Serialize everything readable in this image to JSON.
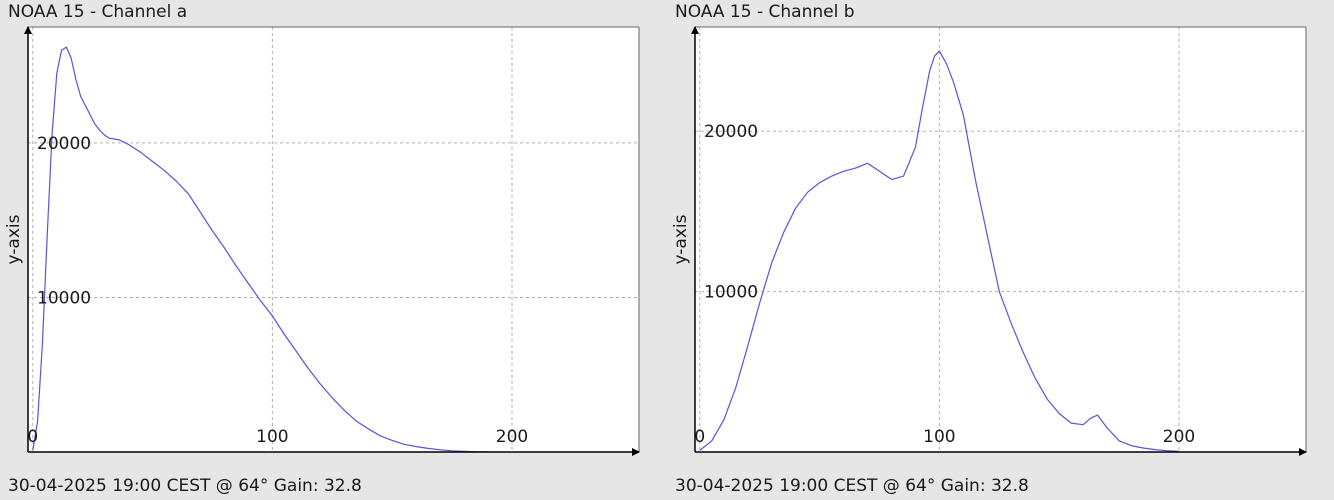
{
  "panels": [
    {
      "title": "NOAA 15 - Channel a",
      "footer": "30-04-2025 19:00 CEST @ 64° Gain: 32.8"
    },
    {
      "title": "NOAA 15 - Channel b",
      "footer": "30-04-2025 19:00 CEST @ 64° Gain: 32.8"
    }
  ],
  "colors": {
    "background": "#ffffff",
    "series": "#5555dd",
    "grid": "#b0b0b0",
    "axis": "#000000"
  },
  "chart_data": [
    {
      "type": "line",
      "title": "NOAA 15 - Channel a",
      "xlabel": "",
      "ylabel": "y-axis",
      "xlim": [
        -2,
        253
      ],
      "ylim": [
        0,
        27500
      ],
      "xticks": [
        0,
        100,
        200
      ],
      "yticks": [
        10000,
        20000
      ],
      "grid": true,
      "series": [
        {
          "x": [
            0,
            2,
            4,
            6,
            8,
            10,
            12,
            14,
            16,
            18,
            20,
            22,
            24,
            26,
            28,
            30,
            32,
            34,
            36,
            38,
            40,
            45,
            50,
            55,
            60,
            65,
            70,
            75,
            80,
            85,
            90,
            95,
            100,
            105,
            110,
            115,
            120,
            125,
            130,
            135,
            140,
            145,
            150,
            155,
            160,
            165,
            170,
            175,
            180,
            185,
            190
          ],
          "y": [
            100,
            2000,
            7000,
            14000,
            20500,
            24500,
            26000,
            26200,
            25500,
            24100,
            23000,
            22400,
            21800,
            21200,
            20800,
            20500,
            20300,
            20250,
            20200,
            20050,
            19900,
            19400,
            18800,
            18200,
            17500,
            16700,
            15500,
            14300,
            13200,
            12000,
            10900,
            9800,
            8800,
            7600,
            6500,
            5400,
            4400,
            3500,
            2700,
            2000,
            1500,
            1050,
            750,
            500,
            350,
            230,
            140,
            80,
            40,
            15,
            5
          ]
        }
      ]
    },
    {
      "type": "line",
      "title": "NOAA 15 - Channel b",
      "xlabel": "",
      "ylabel": "y-axis",
      "xlim": [
        -2,
        253
      ],
      "ylim": [
        0,
        26500
      ],
      "xticks": [
        0,
        100,
        200
      ],
      "yticks": [
        10000,
        20000
      ],
      "grid": true,
      "series": [
        {
          "x": [
            0,
            5,
            10,
            15,
            20,
            25,
            30,
            35,
            40,
            45,
            50,
            55,
            60,
            65,
            70,
            75,
            80,
            85,
            90,
            93,
            96,
            98,
            100,
            103,
            106,
            110,
            115,
            120,
            125,
            130,
            135,
            140,
            145,
            150,
            155,
            160,
            163,
            166,
            170,
            175,
            180,
            185,
            190,
            195,
            200
          ],
          "y": [
            100,
            700,
            2000,
            4000,
            6600,
            9300,
            11800,
            13700,
            15200,
            16200,
            16800,
            17200,
            17500,
            17700,
            18000,
            17500,
            17000,
            17200,
            19000,
            21500,
            23800,
            24700,
            25000,
            24200,
            23000,
            21000,
            17000,
            13500,
            10000,
            8000,
            6200,
            4600,
            3300,
            2400,
            1800,
            1700,
            2100,
            2300,
            1500,
            700,
            400,
            250,
            150,
            80,
            40
          ]
        }
      ]
    }
  ]
}
